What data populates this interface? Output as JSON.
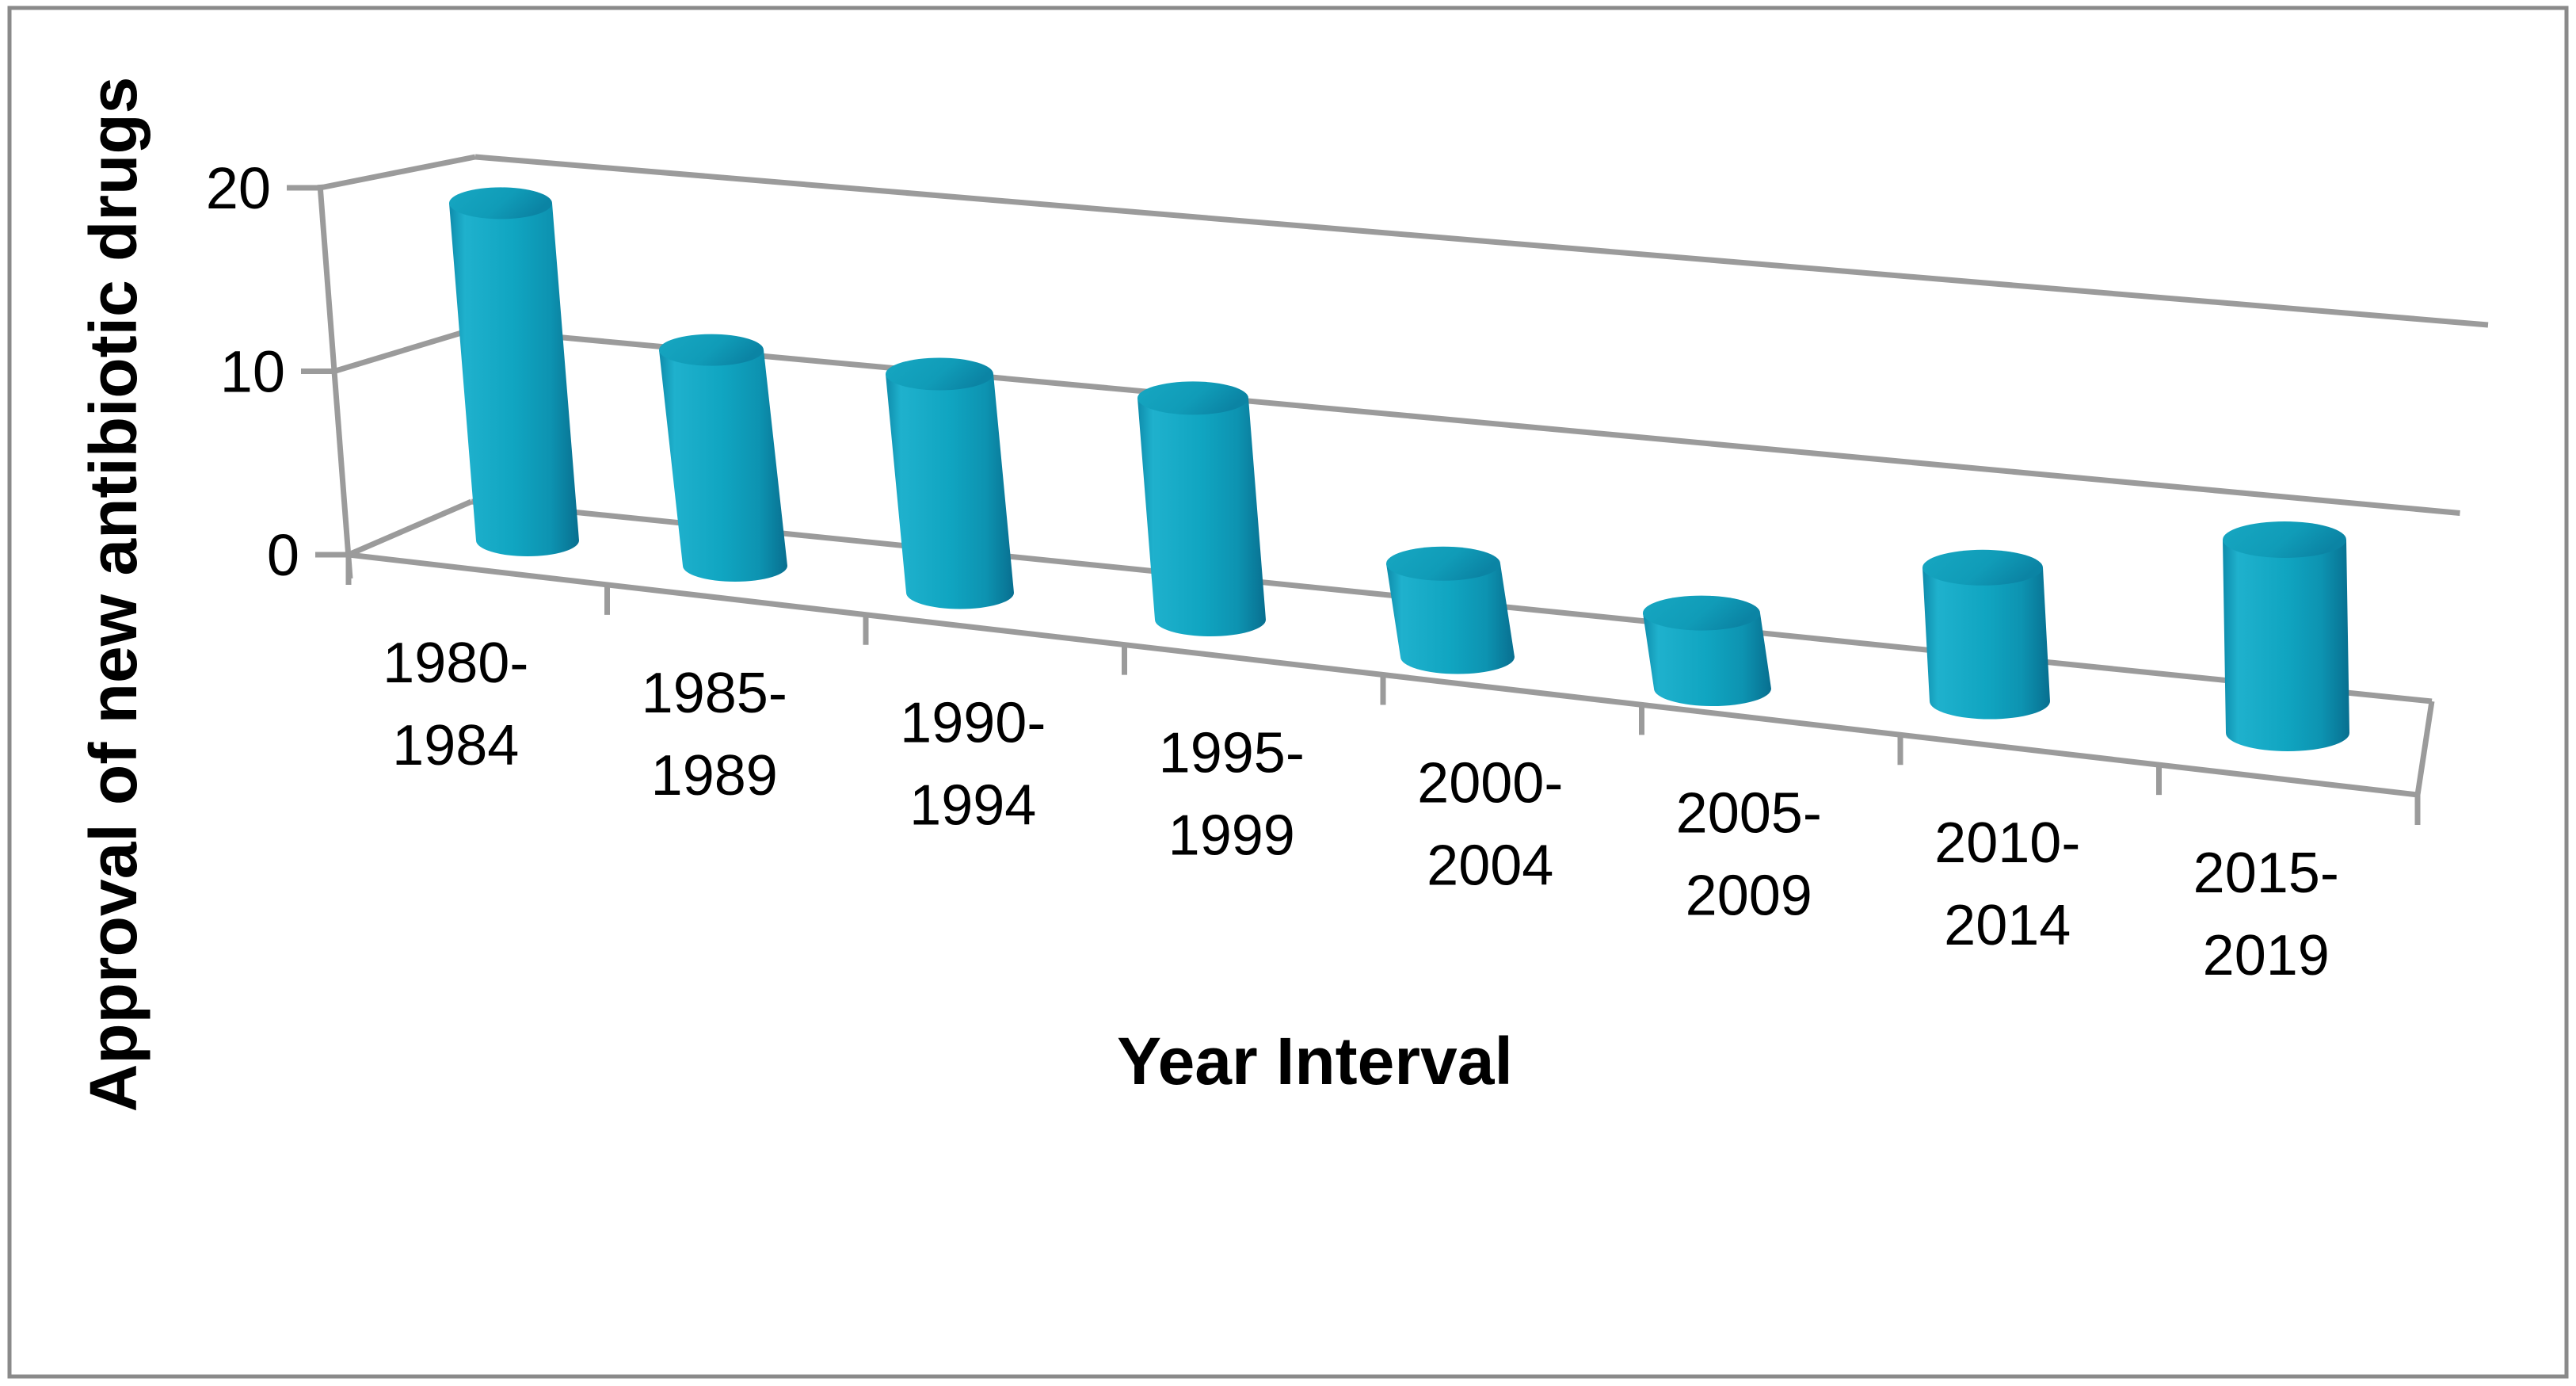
{
  "figure": {
    "background_color": "#ffffff",
    "border_color": "#8a8a8a",
    "frame_color": "#9b9b9b"
  },
  "chart_data": {
    "type": "bar",
    "style": "3d-cylinder-perspective",
    "title": "",
    "xlabel": "Year Interval",
    "ylabel": "Approval of new antibiotic drugs",
    "categories": [
      "1980-1984",
      "1985-1989",
      "1990-1994",
      "1995-1999",
      "2000-2004",
      "2005-2009",
      "2010-2014",
      "2015-2019"
    ],
    "values": [
      19,
      12,
      12,
      12,
      5,
      4,
      7,
      10
    ],
    "ylim": [
      0,
      20
    ],
    "yticks": [
      0,
      10,
      20
    ],
    "grid": true,
    "legend_position": "none",
    "bar_color": "#10a5c1",
    "bar_color_light": "#1fb1cd",
    "bar_color_dark": "#086f90",
    "bar_top_color": "#17a7c2",
    "bar_top_color_dark": "#0b84a4"
  }
}
